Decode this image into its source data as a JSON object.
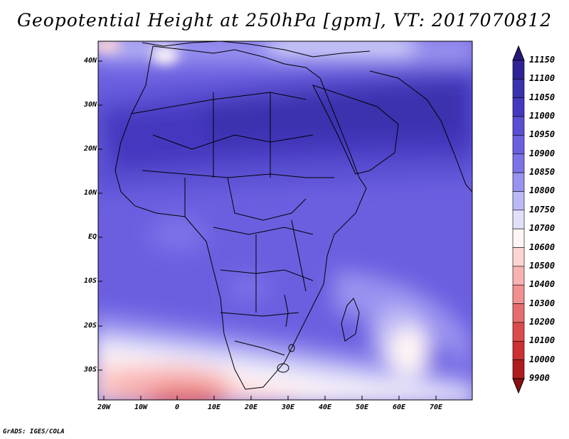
{
  "title": "Geopotential Height at 250hPa [gpm], VT: 2017070812",
  "credit": "GrADS: IGES/COLA",
  "map": {
    "lat_labels": [
      "40N",
      "30N",
      "20N",
      "10N",
      "EQ",
      "10S",
      "20S",
      "30S"
    ],
    "lon_labels": [
      "20W",
      "10W",
      "0",
      "10E",
      "20E",
      "30E",
      "40E",
      "50E",
      "60E",
      "70E"
    ]
  },
  "colorbar": {
    "levels": [
      "11150",
      "11100",
      "11050",
      "11000",
      "10950",
      "10900",
      "10850",
      "10800",
      "10750",
      "10700",
      "10600",
      "10500",
      "10400",
      "10300",
      "10200",
      "10100",
      "10000",
      "9900"
    ],
    "colors": [
      "#241878",
      "#2e2296",
      "#3a32ad",
      "#4538bf",
      "#5a4fd2",
      "#6b5fe0",
      "#7d72e8",
      "#9a92ef",
      "#bcb8f5",
      "#e0e0fb",
      "#fff5f5",
      "#fdd4d4",
      "#f8b2b2",
      "#f09090",
      "#e66e6e",
      "#dc4c4c",
      "#cc3030",
      "#b01c1c",
      "#8c1010"
    ]
  }
}
